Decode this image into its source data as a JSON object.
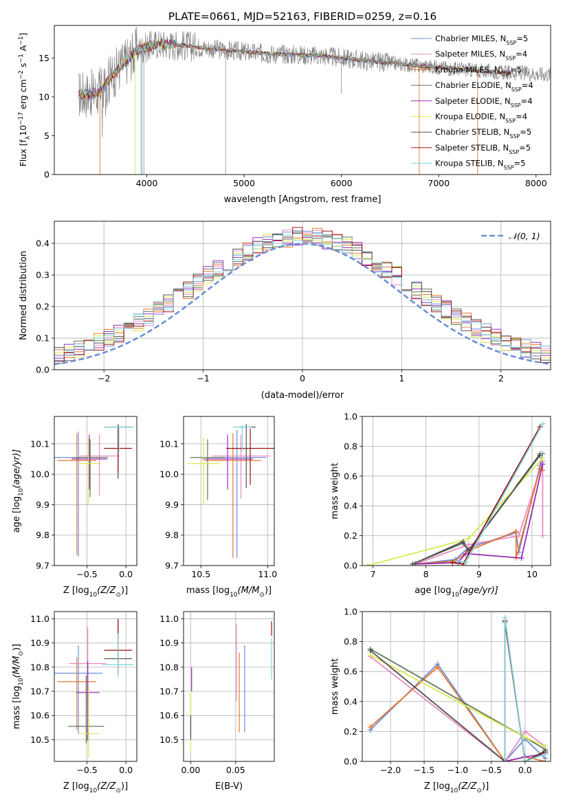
{
  "figure": {
    "title": "PLATE=0661, MJD=52163, FIBERID=0259, z=0.16"
  },
  "colors": {
    "chabrier_miles": "#6a8fd8",
    "salpeter_miles": "#e989c2",
    "kroupa_miles": "#e8762b",
    "chabrier_elodie": "#607858",
    "salpeter_elodie": "#9a2ab8",
    "kroupa_elodie": "#d6ea4e",
    "chabrier_stelib": "#505050",
    "salpeter_stelib": "#9a1010",
    "kroupa_stelib": "#7ed6dc",
    "data": "#808080",
    "gaussian": "#6a8fd8",
    "grid": "#b0b0b0"
  },
  "legend_labels": [
    "Chabrier MILES, N",
    "Salpeter MILES, N",
    "Kroupa MILES, N",
    "Chabrier ELODIE, N",
    "Salpeter ELODIE, N",
    "Kroupa ELODIE, N",
    "Chabrier STELIB, N",
    "Salpeter STELIB, N",
    "Kroupa STELIB, N"
  ],
  "legend_sub": "SSP",
  "legend_values": [
    "=5",
    "=4",
    "=5",
    "=4",
    "=4",
    "=4",
    "=5",
    "=5",
    "=5"
  ],
  "chart_data": [
    {
      "id": "spectrum",
      "type": "line",
      "xlabel": "wavelength [Angstrom, rest frame]",
      "ylabel": "Flux [f",
      "ylabel_parts": [
        "Flux [f",
        "λ",
        "10",
        "−17",
        " erg cm",
        "−2",
        " s",
        "−1",
        " A",
        "−1",
        "]"
      ],
      "xlim": [
        3050,
        8150
      ],
      "ylim": [
        0,
        19.2
      ],
      "xticks": [
        "4000",
        "5000",
        "6000",
        "7000",
        "8000"
      ],
      "xtick_values": [
        4000,
        5000,
        6000,
        7000,
        8000
      ],
      "yticks": [
        "0",
        "5",
        "10",
        "15"
      ],
      "ytick_values": [
        0,
        5,
        10,
        15
      ],
      "continuum_knots": [
        [
          3300,
          10.3
        ],
        [
          3500,
          10.5
        ],
        [
          3700,
          13.5
        ],
        [
          3900,
          16.0
        ],
        [
          4100,
          16.8
        ],
        [
          4400,
          16.6
        ],
        [
          4800,
          16.0
        ],
        [
          5200,
          15.6
        ],
        [
          5800,
          15.3
        ],
        [
          6300,
          14.6
        ],
        [
          6800,
          14.0
        ],
        [
          7200,
          13.6
        ],
        [
          7600,
          13.2
        ],
        [
          8150,
          12.9
        ]
      ]
    },
    {
      "id": "residuals",
      "type": "histogram",
      "xlabel": "(data-model)/error",
      "ylabel": "Normed distribution",
      "xlim": [
        -2.5,
        2.5
      ],
      "ylim": [
        0,
        0.47
      ],
      "xticks": [
        "−2",
        "−1",
        "0",
        "1",
        "2"
      ],
      "xtick_values": [
        -2,
        -1,
        0,
        1,
        2
      ],
      "yticks": [
        "0.0",
        "0.1",
        "0.2",
        "0.3",
        "0.4"
      ],
      "ytick_values": [
        0,
        0.1,
        0.2,
        0.3,
        0.4
      ],
      "gaussian_label": "𝒩(0, 1)",
      "bin_width": 0.1
    },
    {
      "id": "age_vs_Z",
      "type": "scatter",
      "xlabel": "Z [log",
      "xlabel_parts": [
        "Z [log",
        "10",
        "(Z/Z",
        "⊙",
        ")]"
      ],
      "ylabel_parts": [
        "age  [log",
        "10",
        "(age/yr)]"
      ],
      "xlim": [
        -0.92,
        0.14
      ],
      "ylim": [
        9.7,
        10.19
      ],
      "xticks": [
        "−0.5",
        "0.0"
      ],
      "xtick_values": [
        -0.5,
        0.0
      ],
      "yticks": [
        "9.7",
        "9.8",
        "9.9",
        "10.0",
        "10.1"
      ],
      "ytick_values": [
        9.7,
        9.8,
        9.9,
        10.0,
        10.1
      ],
      "points": [
        {
          "x": -0.61,
          "xerr": 0.31,
          "y": 10.055,
          "yerr_lo": 0.325,
          "yerr_hi": 0.085
        },
        {
          "x": -0.34,
          "xerr": 0.26,
          "y": 10.06,
          "yerr_lo": 0.13,
          "yerr_hi": 0.07
        },
        {
          "x": -0.63,
          "xerr": 0.25,
          "y": 10.045,
          "yerr_lo": 0.31,
          "yerr_hi": 0.09
        },
        {
          "x": -0.46,
          "xerr": 0.23,
          "y": 10.055,
          "yerr_lo": 0.13,
          "yerr_hi": 0.06
        },
        {
          "x": -0.47,
          "xerr": 0.23,
          "y": 10.05,
          "yerr_lo": 0.1,
          "yerr_hi": 0.08
        },
        {
          "x": -0.48,
          "xerr": 0.13,
          "y": 10.035,
          "yerr_lo": 0.135,
          "yerr_hi": 0.085
        },
        {
          "x": -0.1,
          "xerr": 0.18,
          "y": 10.155,
          "yerr_lo": 0.17,
          "yerr_hi": 0.01
        },
        {
          "x": -0.1,
          "xerr": 0.18,
          "y": 10.085,
          "yerr_lo": 0.08,
          "yerr_hi": 0.065
        },
        {
          "x": -0.09,
          "xerr": 0.19,
          "y": 10.155,
          "yerr_lo": 0.08,
          "yerr_hi": 0.005
        }
      ]
    },
    {
      "id": "age_vs_mass",
      "type": "scatter",
      "xlabel_parts": [
        "mass [log",
        "10",
        "(M/M",
        "⊙",
        ")]"
      ],
      "ylabel_parts": [],
      "xlim": [
        10.37,
        11.05
      ],
      "ylim": [
        9.7,
        10.19
      ],
      "xticks": [
        "10.5",
        "11.0"
      ],
      "xtick_values": [
        10.5,
        11.0
      ],
      "yticks": [
        "9.7",
        "9.8",
        "9.9",
        "10.0",
        "10.1"
      ],
      "ytick_values": [
        9.7,
        9.8,
        9.9,
        10.0,
        10.1
      ],
      "points": [
        {
          "x": 10.77,
          "xerr": 0.22,
          "y": 10.055,
          "yerr_lo": 0.33,
          "yerr_hi": 0.09
        },
        {
          "x": 10.8,
          "xerr": 0.22,
          "y": 10.06,
          "yerr_lo": 0.14,
          "yerr_hi": 0.07
        },
        {
          "x": 10.74,
          "xerr": 0.21,
          "y": 10.045,
          "yerr_lo": 0.32,
          "yerr_hi": 0.09
        },
        {
          "x": 10.55,
          "xerr": 0.13,
          "y": 10.055,
          "yerr_lo": 0.14,
          "yerr_hi": 0.06
        },
        {
          "x": 10.7,
          "xerr": 0.19,
          "y": 10.05,
          "yerr_lo": 0.1,
          "yerr_hi": 0.08
        },
        {
          "x": 10.52,
          "xerr": 0.12,
          "y": 10.035,
          "yerr_lo": 0.135,
          "yerr_hi": 0.085
        },
        {
          "x": 10.84,
          "xerr": 0.07,
          "y": 10.155,
          "yerr_lo": 0.2,
          "yerr_hi": 0.01
        },
        {
          "x": 10.87,
          "xerr": 0.18,
          "y": 10.085,
          "yerr_lo": 0.12,
          "yerr_hi": 0.065
        },
        {
          "x": 10.81,
          "xerr": 0.07,
          "y": 10.155,
          "yerr_lo": 0.08,
          "yerr_hi": 0.005
        }
      ]
    },
    {
      "id": "weight_vs_age",
      "type": "line",
      "xlabel_parts": [
        "age  [log",
        "10",
        "(age/yr)]"
      ],
      "ylabel": "mass weight",
      "xlim": [
        6.8,
        10.35
      ],
      "ylim": [
        0,
        1
      ],
      "xticks": [
        "7",
        "8",
        "9",
        "10"
      ],
      "xtick_values": [
        7,
        8,
        9,
        10
      ],
      "yticks": [
        "0.0",
        "0.2",
        "0.4",
        "0.6",
        "0.8",
        "1.0"
      ],
      "ytick_values": [
        0,
        0.2,
        0.4,
        0.6,
        0.8,
        1.0
      ],
      "series": [
        {
          "x": [
            7.8,
            8.55,
            8.8,
            9.7,
            9.75,
            10.15,
            10.2
          ],
          "y": [
            0.01,
            0.04,
            0.12,
            0.22,
            0.09,
            0.67,
            0.75
          ]
        },
        {
          "x": [
            7.8,
            8.8,
            9.75,
            10.2,
            10.2
          ],
          "y": [
            0.01,
            0.14,
            0.2,
            0.7,
            0.2
          ]
        },
        {
          "x": [
            7.8,
            8.55,
            8.8,
            9.7,
            9.7,
            10.15,
            10.2
          ],
          "y": [
            0.01,
            0.03,
            0.1,
            0.23,
            0.05,
            0.65,
            0.64
          ]
        },
        {
          "x": [
            7.75,
            8.7,
            8.8,
            10.15
          ],
          "y": [
            0.01,
            0.15,
            0.1,
            0.75
          ]
        },
        {
          "x": [
            7.8,
            8.6,
            8.75,
            9.8,
            10.2
          ],
          "y": [
            0.01,
            0.02,
            0.08,
            0.05,
            0.68
          ]
        },
        {
          "x": [
            6.9,
            8.8,
            10.2
          ],
          "y": [
            0.0,
            0.18,
            0.72
          ]
        },
        {
          "x": [
            7.75,
            8.7,
            8.8,
            10.15
          ],
          "y": [
            0.01,
            0.16,
            0.1,
            0.74
          ]
        },
        {
          "x": [
            8.5,
            8.7,
            10.15
          ],
          "y": [
            0.02,
            0.01,
            0.93
          ]
        },
        {
          "x": [
            8.6,
            8.75,
            10.2
          ],
          "y": [
            0.03,
            0.02,
            0.95
          ]
        }
      ]
    },
    {
      "id": "mass_vs_Z",
      "type": "scatter",
      "xlabel_parts": [
        "Z [log",
        "10",
        "(Z/Z",
        "⊙",
        ")]"
      ],
      "ylabel_parts": [
        "mass [log",
        "10",
        "(M/M",
        "⊙",
        ")]"
      ],
      "xlim": [
        -0.92,
        0.14
      ],
      "ylim": [
        10.41,
        11.03
      ],
      "xticks": [
        "−0.5",
        "0.0"
      ],
      "xtick_values": [
        -0.5,
        0.0
      ],
      "yticks": [
        "10.5",
        "10.6",
        "10.7",
        "10.8",
        "10.9",
        "11.0"
      ],
      "ytick_values": [
        10.5,
        10.6,
        10.7,
        10.8,
        10.9,
        11.0
      ],
      "points": [
        {
          "x": -0.61,
          "xerr": 0.31,
          "y": 10.775,
          "yerr_lo": 0.25,
          "yerr_hi": 0.115
        },
        {
          "x": -0.49,
          "xerr": 0.24,
          "y": 10.815,
          "yerr_lo": 0.15,
          "yerr_hi": 0.15
        },
        {
          "x": -0.63,
          "xerr": 0.25,
          "y": 10.74,
          "yerr_lo": 0.2,
          "yerr_hi": 0.1
        },
        {
          "x": -0.51,
          "xerr": 0.23,
          "y": 10.555,
          "yerr_lo": 0.07,
          "yerr_hi": 0.21
        },
        {
          "x": -0.49,
          "xerr": 0.15,
          "y": 10.695,
          "yerr_lo": 0.2,
          "yerr_hi": 0.13
        },
        {
          "x": -0.48,
          "xerr": 0.13,
          "y": 10.525,
          "yerr_lo": 0.1,
          "yerr_hi": 0.2
        },
        {
          "x": -0.1,
          "xerr": 0.18,
          "y": 10.835,
          "yerr_lo": 0.07,
          "yerr_hi": 0.16
        },
        {
          "x": -0.1,
          "xerr": 0.18,
          "y": 10.87,
          "yerr_lo": 0.09,
          "yerr_hi": 0.13
        },
        {
          "x": -0.1,
          "xerr": 0.2,
          "y": 10.81,
          "yerr_lo": 0.05,
          "yerr_hi": 0.13
        }
      ]
    },
    {
      "id": "mass_vs_ebv",
      "type": "scatter",
      "xlabel": "E(B-V)",
      "xlim": [
        -0.008,
        0.093
      ],
      "ylim": [
        10.41,
        11.03
      ],
      "xticks": [
        "0.00",
        "0.05"
      ],
      "xtick_values": [
        0.0,
        0.05
      ],
      "yticks": [
        "10.5",
        "10.6",
        "10.7",
        "10.8",
        "10.9",
        "11.0"
      ],
      "ytick_values": [
        10.5,
        10.6,
        10.7,
        10.8,
        10.9,
        11.0
      ],
      "points": [
        {
          "x": 0.06,
          "y": 10.7,
          "yerr_lo": 0.17,
          "yerr_hi": 0.19
        },
        {
          "x": 0.051,
          "y": 10.82,
          "yerr_lo": 0.16,
          "yerr_hi": 0.16
        },
        {
          "x": 0.054,
          "y": 10.69,
          "yerr_lo": 0.16,
          "yerr_hi": 0.17
        },
        {
          "x": 0.0,
          "y": 10.62,
          "yerr_lo": 0.1,
          "yerr_hi": 0.08
        },
        {
          "x": 0.001,
          "y": 10.72,
          "yerr_lo": 0.02,
          "yerr_hi": 0.08
        },
        {
          "x": 0.0,
          "y": 10.55,
          "yerr_lo": 0.1,
          "yerr_hi": 0.15
        },
        {
          "x": 0.0,
          "y": 10.55,
          "yerr_lo": 0.05,
          "yerr_hi": 0.05
        },
        {
          "x": 0.09,
          "y": 10.96,
          "yerr_lo": 0.03,
          "yerr_hi": 0.03
        },
        {
          "x": 0.09,
          "y": 10.84,
          "yerr_lo": 0.09,
          "yerr_hi": 0.08
        }
      ]
    },
    {
      "id": "weight_vs_Z",
      "type": "line",
      "xlabel_parts": [
        "Z [log",
        "10",
        "(Z/Z",
        "⊙",
        ")]"
      ],
      "ylabel": "mass weight",
      "xlim": [
        -2.42,
        0.38
      ],
      "ylim": [
        0,
        1
      ],
      "xticks": [
        "−2.0",
        "−1.5",
        "−1.0",
        "−0.5",
        "0.0"
      ],
      "xtick_values": [
        -2.0,
        -1.5,
        -1.0,
        -0.5,
        0.0
      ],
      "yticks": [
        "0.0",
        "0.2",
        "0.4",
        "0.6",
        "0.8",
        "1.0"
      ],
      "ytick_values": [
        0,
        0.2,
        0.4,
        0.6,
        0.8,
        1.0
      ],
      "series": [
        {
          "x": [
            -2.3,
            -1.3,
            -0.3,
            0.0,
            0.3
          ],
          "y": [
            0.21,
            0.65,
            0.0,
            0.15,
            0.02
          ]
        },
        {
          "x": [
            -2.3,
            -0.3,
            0.0,
            0.3
          ],
          "y": [
            0.7,
            0.0,
            0.2,
            0.1
          ]
        },
        {
          "x": [
            -2.3,
            -1.3,
            -0.3,
            0.0,
            0.3
          ],
          "y": [
            0.23,
            0.63,
            0.0,
            0.03,
            0.0
          ]
        },
        {
          "x": [
            -2.3,
            0.0,
            0.3
          ],
          "y": [
            0.75,
            0.16,
            0.08
          ]
        },
        {
          "x": [
            -0.3,
            0.0,
            0.3
          ],
          "y": [
            0.0,
            0.03,
            0.05
          ]
        },
        {
          "x": [
            -2.3,
            0.0,
            0.3
          ],
          "y": [
            0.71,
            0.16,
            0.1
          ]
        },
        {
          "x": [
            -2.3,
            -0.3,
            -0.3,
            0.0,
            0.3
          ],
          "y": [
            0.74,
            0.0,
            0.93,
            0.0,
            0.07
          ]
        },
        {
          "x": [
            -0.3,
            -0.3,
            0.0,
            0.3
          ],
          "y": [
            0.0,
            0.94,
            0.0,
            0.06
          ]
        },
        {
          "x": [
            -0.3,
            -0.3,
            0.0,
            0.3
          ],
          "y": [
            0.0,
            0.96,
            0.0,
            0.05
          ]
        }
      ]
    }
  ]
}
